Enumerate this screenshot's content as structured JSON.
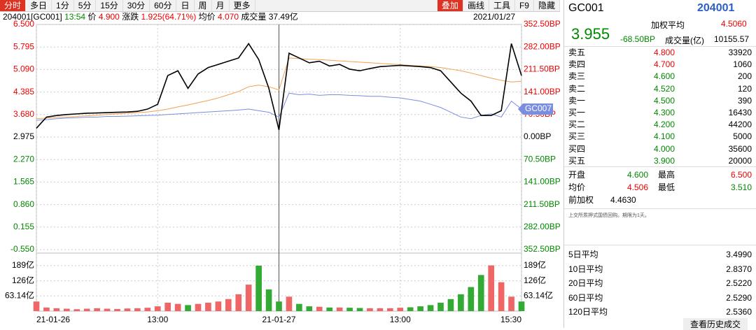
{
  "toolbar": {
    "tabs": [
      "分时",
      "多日",
      "1分",
      "5分",
      "15分",
      "30分",
      "60分",
      "日",
      "周",
      "月",
      "更多"
    ],
    "tools": [
      "叠加",
      "画线",
      "工具",
      "F9",
      "隐藏"
    ]
  },
  "info": {
    "code": "204001[GC001]",
    "time": "13:54",
    "price_label": "价",
    "price": "4.900",
    "change_label": "涨跌",
    "change": "1.925(64.71%)",
    "avg_label": "均价",
    "avg": "4.070",
    "volume_label": "成交量",
    "volume": "37.49亿",
    "date": "2021/01/27"
  },
  "chart": {
    "type": "line",
    "xlim": [
      0,
      48
    ],
    "ylim": [
      -0.55,
      6.5
    ],
    "y2lim": [
      -352.5,
      352.5
    ],
    "vlim": [
      0,
      241
    ],
    "xticks": [
      {
        "value": 0,
        "label": "21-01-26"
      },
      {
        "value": 12,
        "label": "13:00"
      },
      {
        "value": 24,
        "label": "21-01-27"
      },
      {
        "value": 36,
        "label": "13:00"
      },
      {
        "value": 48,
        "label": "15:30"
      }
    ],
    "yticks": [
      {
        "value": 6.5,
        "label": "6.500"
      },
      {
        "value": 5.795,
        "label": "5.795"
      },
      {
        "value": 5.09,
        "label": "5.090"
      },
      {
        "value": 4.385,
        "label": "4.385"
      },
      {
        "value": 3.68,
        "label": "3.680"
      },
      {
        "value": 2.975,
        "label": "2.975"
      },
      {
        "value": 2.27,
        "label": "2.270"
      },
      {
        "value": 1.565,
        "label": "1.565"
      },
      {
        "value": 0.86,
        "label": "0.860"
      },
      {
        "value": 0.155,
        "label": "0.155"
      },
      {
        "value": -0.55,
        "label": "-0.550"
      }
    ],
    "y2ticks": [
      {
        "value": 352.5,
        "label": "352.50BP"
      },
      {
        "value": 282,
        "label": "282.00BP"
      },
      {
        "value": 211.5,
        "label": "211.50BP"
      },
      {
        "value": 141,
        "label": "141.00BP"
      },
      {
        "value": 70.5,
        "label": "70.50BP"
      },
      {
        "value": 0,
        "label": "0.00BP"
      },
      {
        "value": -70.5,
        "label": "70.50BP"
      },
      {
        "value": -141,
        "label": "141.00BP"
      },
      {
        "value": -211.5,
        "label": "211.50BP"
      },
      {
        "value": -282,
        "label": "282.00BP"
      },
      {
        "value": -352.5,
        "label": "352.50BP"
      }
    ],
    "vticks": [
      {
        "value": 189,
        "label": "189亿"
      },
      {
        "value": 126,
        "label": "126亿"
      },
      {
        "value": 63.14,
        "label": "63.14亿"
      }
    ],
    "price": {
      "color": "#000000",
      "values": [
        3.25,
        3.6,
        3.65,
        3.68,
        3.7,
        3.72,
        3.73,
        3.74,
        3.75,
        3.76,
        3.78,
        3.85,
        4.0,
        4.9,
        5.05,
        4.5,
        4.95,
        5.15,
        5.25,
        5.35,
        5.45,
        5.9,
        5.4,
        4.5,
        3.2,
        5.6,
        5.45,
        5.3,
        5.35,
        5.2,
        5.25,
        5.1,
        5.05,
        5.12,
        5.18,
        5.2,
        5.22,
        5.2,
        5.18,
        5.15,
        5.05,
        4.7,
        4.35,
        4.1,
        3.65,
        3.65,
        3.8,
        5.9,
        4.9
      ]
    },
    "avg": {
      "color": "#f0a050",
      "values": [
        3.55,
        3.57,
        3.59,
        3.6,
        3.62,
        3.64,
        3.66,
        3.68,
        3.7,
        3.72,
        3.74,
        3.76,
        3.8,
        3.85,
        3.92,
        3.98,
        4.05,
        4.12,
        4.2,
        4.3,
        4.4,
        4.55,
        4.6,
        4.55,
        4.45,
        5.45,
        5.43,
        5.41,
        5.4,
        5.38,
        5.36,
        5.34,
        5.32,
        5.3,
        5.28,
        5.26,
        5.24,
        5.22,
        5.2,
        5.18,
        5.15,
        5.1,
        5.05,
        4.98,
        4.9,
        4.82,
        4.75,
        4.7,
        4.72
      ]
    },
    "compare": {
      "name": "GC007",
      "color": "#7a8ee0",
      "values": [
        3.5,
        3.52,
        3.55,
        3.57,
        3.58,
        3.6,
        3.6,
        3.62,
        3.62,
        3.63,
        3.64,
        3.65,
        3.66,
        3.68,
        3.7,
        3.72,
        3.74,
        3.76,
        3.78,
        3.8,
        3.82,
        3.85,
        3.8,
        3.75,
        3.6,
        4.35,
        4.3,
        4.32,
        4.28,
        4.3,
        4.3,
        4.28,
        4.27,
        4.25,
        4.25,
        4.22,
        4.2,
        4.15,
        4.1,
        4.0,
        3.9,
        3.75,
        3.6,
        3.55,
        3.65,
        3.7,
        3.6,
        4.1,
        3.85
      ]
    },
    "volume": {
      "values": [
        40,
        15,
        12,
        10,
        8,
        10,
        12,
        10,
        9,
        11,
        12,
        14,
        20,
        35,
        30,
        25,
        30,
        35,
        40,
        50,
        70,
        110,
        189,
        90,
        40,
        60,
        30,
        20,
        18,
        15,
        15,
        14,
        13,
        12,
        12,
        12,
        14,
        16,
        20,
        25,
        35,
        50,
        70,
        100,
        150,
        190,
        120,
        60,
        40
      ]
    }
  },
  "panel": {
    "name": "GC001",
    "code": "204001",
    "wavg_label": "加权平均",
    "wavg": "4.5060",
    "last": "3.955",
    "change": "-68.50BP",
    "vol_label": "成交量(亿)",
    "vol": "10155.57",
    "book": [
      [
        "卖五",
        "4.800",
        "33920"
      ],
      [
        "卖四",
        "4.700",
        "1060"
      ],
      [
        "卖三",
        "4.600",
        "200"
      ],
      [
        "卖二",
        "4.520",
        "120"
      ],
      [
        "卖一",
        "4.500",
        "390"
      ],
      [
        "买一",
        "4.300",
        "16430"
      ],
      [
        "买二",
        "4.200",
        "44200"
      ],
      [
        "买三",
        "4.100",
        "5000"
      ],
      [
        "买四",
        "4.000",
        "35600"
      ],
      [
        "买五",
        "3.900",
        "20000"
      ]
    ],
    "stats": [
      [
        "开盘",
        "4.600",
        "最高",
        "6.500"
      ],
      [
        "均价",
        "4.506",
        "最低",
        "3.510"
      ]
    ],
    "prev_label": "前加权",
    "prev": "4.4630",
    "note": "上交所质押式国债回购。期限为1天。",
    "averages": [
      [
        "5日平均",
        "3.4990"
      ],
      [
        "10日平均",
        "2.8370"
      ],
      [
        "20日平均",
        "2.5220"
      ],
      [
        "60日平均",
        "2.5290"
      ],
      [
        "120日平均",
        "2.5360"
      ]
    ],
    "history": "查看历史成交"
  }
}
